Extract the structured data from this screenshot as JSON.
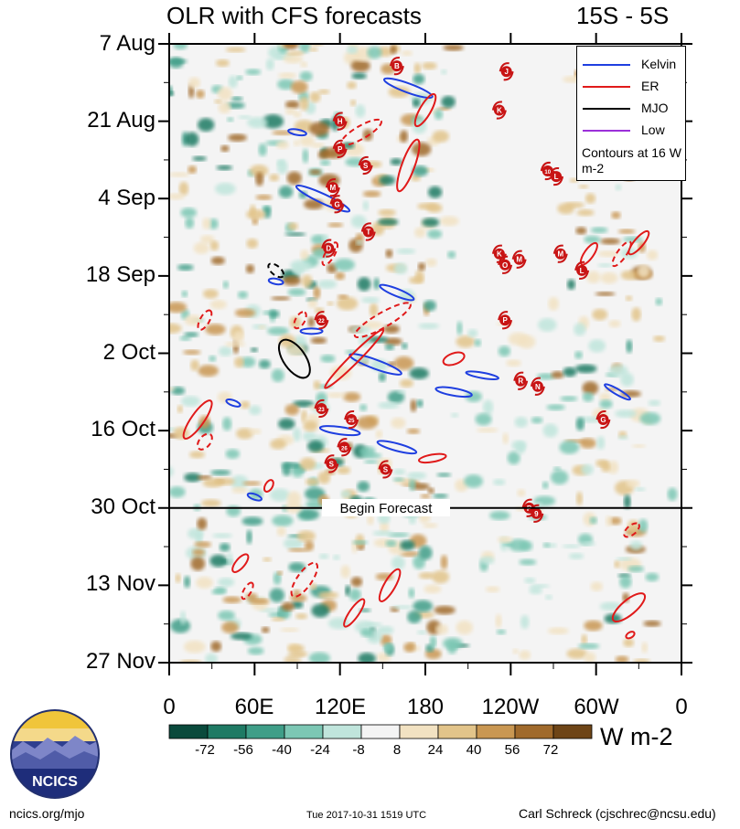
{
  "header": {
    "title": "OLR with CFS forecasts",
    "latitude_band": "15S - 5S"
  },
  "chart_data": {
    "type": "heatmap",
    "title": "OLR with CFS forecasts",
    "subtitle": "15S - 5S",
    "x_axis": {
      "quantity": "longitude",
      "range_deg_east": [
        0,
        360
      ],
      "tick_positions_deg": [
        0,
        60,
        120,
        180,
        240,
        300,
        360
      ],
      "tick_labels": [
        "0",
        "60E",
        "120E",
        "180",
        "120W",
        "60W",
        "0"
      ]
    },
    "y_axis": {
      "quantity": "date",
      "direction": "time increases downward",
      "range": [
        "7 Aug",
        "27 Nov"
      ],
      "tick_labels": [
        "7 Aug",
        "21 Aug",
        "4 Sep",
        "18 Sep",
        "2 Oct",
        "16 Oct",
        "30 Oct",
        "13 Nov",
        "27 Nov"
      ],
      "tick_day_offsets": [
        0,
        14,
        28,
        42,
        56,
        70,
        84,
        98,
        112
      ]
    },
    "forecast_start": {
      "label": "Begin Forecast",
      "day_offset": 84
    },
    "colorbar": {
      "units": "W m-2",
      "levels": [
        -72,
        -56,
        -40,
        -24,
        -8,
        8,
        24,
        40,
        56,
        72
      ],
      "level_labels": [
        "-72",
        "-56",
        "-40",
        "-24",
        "-8",
        "8",
        "24",
        "40",
        "56",
        "72"
      ],
      "colors": [
        "#0a4a3c",
        "#1f7a64",
        "#3f9e88",
        "#7cc7b4",
        "#c0e5dc",
        "#f4f4f4",
        "#f2e2c2",
        "#e2c48a",
        "#c99752",
        "#a06a2c",
        "#6e4517"
      ]
    },
    "legend": {
      "entries": [
        {
          "label": "Kelvin",
          "color": "#1f3fe0"
        },
        {
          "label": "ER",
          "color": "#e01a1a"
        },
        {
          "label": "MJO",
          "color": "#000000"
        },
        {
          "label": "Low",
          "color": "#9b30d9"
        }
      ],
      "note": "Contours at 16 W m-2"
    },
    "storms_marked": [
      "B",
      "J",
      "K",
      "H",
      "P",
      "L",
      "10",
      "S",
      "M",
      "G",
      "T",
      "K",
      "D",
      "O",
      "M",
      "L",
      "M",
      "22",
      "P",
      "R",
      "N",
      "23",
      "G",
      "25",
      "26",
      "S",
      "S",
      "P",
      "9"
    ]
  },
  "footer": {
    "website": "ncics.org/mjo",
    "timestamp": "Tue 2017-10-31 1519 UTC",
    "author": "Carl Schreck (cjschrec@ncsu.edu)",
    "logo_text": "NCICS"
  }
}
